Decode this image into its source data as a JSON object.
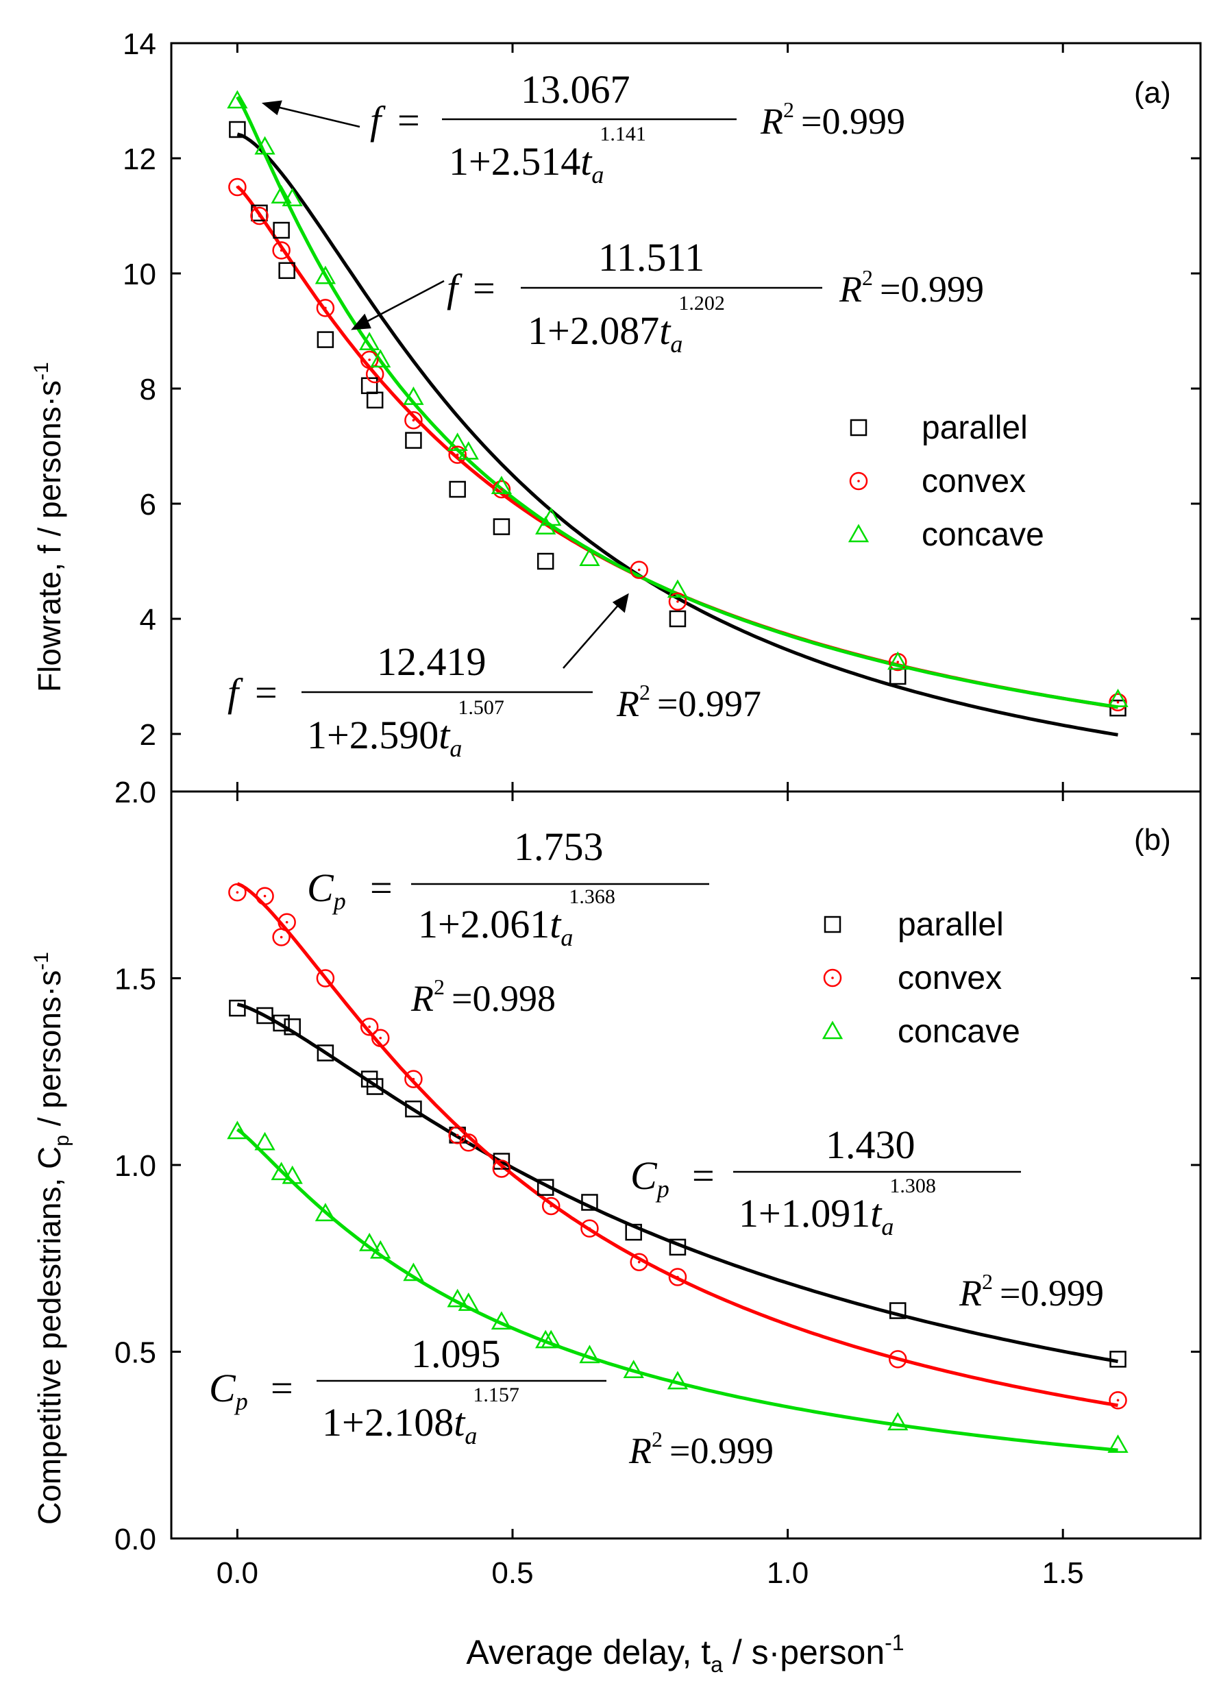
{
  "colors": {
    "parallel": "#000000",
    "convex": "#ff0000",
    "concave": "#00dd00",
    "axis": "#000000"
  },
  "shared_x_axis": {
    "label_prefix": "Average delay, t",
    "label_sub": "a",
    "label_mid": " / s·person",
    "label_sup": "-1",
    "ticks": [
      "0.0",
      "0.5",
      "1.0",
      "1.5"
    ],
    "tick_values": [
      0,
      0.5,
      1.0,
      1.5
    ],
    "range": [
      -0.12,
      1.75
    ]
  },
  "chart_data": [
    {
      "type": "scatter",
      "panel_label": "(a)",
      "ylabel": "Flowrate, f / persons·s",
      "ylabel_sup": "-1",
      "ylim": [
        1,
        14
      ],
      "y_ticks": [
        "2",
        "4",
        "6",
        "8",
        "10",
        "12",
        "14"
      ],
      "y_tick_values": [
        2,
        4,
        6,
        8,
        10,
        12,
        14
      ],
      "legend": [
        "parallel",
        "convex",
        "concave"
      ],
      "series": [
        {
          "name": "parallel",
          "x": [
            0,
            0.04,
            0.08,
            0.09,
            0.16,
            0.24,
            0.25,
            0.32,
            0.4,
            0.48,
            0.56,
            0.8,
            1.2,
            1.6
          ],
          "y": [
            12.5,
            11.05,
            10.75,
            10.05,
            8.85,
            8.05,
            7.8,
            7.1,
            6.25,
            5.6,
            5.0,
            4.0,
            3.0,
            2.45
          ],
          "fit": {
            "a": 12.419,
            "b": 2.59,
            "c": 1.507,
            "r2": "0.997"
          }
        },
        {
          "name": "convex",
          "x": [
            0,
            0.04,
            0.08,
            0.16,
            0.24,
            0.25,
            0.32,
            0.4,
            0.48,
            0.73,
            0.8,
            1.2,
            1.6
          ],
          "y": [
            11.5,
            11.0,
            10.4,
            9.4,
            8.5,
            8.25,
            7.45,
            6.85,
            6.25,
            4.85,
            4.3,
            3.25,
            2.55
          ],
          "fit": {
            "a": 11.511,
            "b": 2.087,
            "c": 1.202,
            "r2": "0.999"
          }
        },
        {
          "name": "concave",
          "x": [
            0,
            0.05,
            0.08,
            0.1,
            0.16,
            0.24,
            0.26,
            0.32,
            0.4,
            0.42,
            0.48,
            0.56,
            0.57,
            0.64,
            0.8,
            1.2,
            1.6
          ],
          "y": [
            13.0,
            12.2,
            11.35,
            11.3,
            9.95,
            8.8,
            8.5,
            7.85,
            7.05,
            6.9,
            6.3,
            5.6,
            5.75,
            5.05,
            4.5,
            3.25,
            2.6
          ],
          "fit": {
            "a": 13.067,
            "b": 2.514,
            "c": 1.141,
            "r2": "0.999"
          }
        }
      ],
      "equations": [
        {
          "series": "concave",
          "lhs": "f",
          "num": "13.067",
          "den_pre": "1+2.514",
          "t": "t",
          "sub": "a",
          "exp": "1.141",
          "r2_label": "R",
          "r2_sup": "2",
          "r2_val": "=0.999"
        },
        {
          "series": "convex",
          "lhs": "f",
          "num": "11.511",
          "den_pre": "1+2.087",
          "t": "t",
          "sub": "a",
          "exp": "1.202",
          "r2_label": "R",
          "r2_sup": "2",
          "r2_val": "=0.999"
        },
        {
          "series": "parallel",
          "lhs": "f",
          "num": "12.419",
          "den_pre": "1+2.590",
          "t": "t",
          "sub": "a",
          "exp": "1.507",
          "r2_label": "R",
          "r2_sup": "2",
          "r2_val": "=0.997"
        }
      ]
    },
    {
      "type": "scatter",
      "panel_label": "(b)",
      "ylabel": "Competitive pedestrians, C",
      "ylabel_sub": "p",
      "ylabel_rest": " / persons·s",
      "ylabel_sup": "-1",
      "ylim": [
        0,
        2.0
      ],
      "y_ticks": [
        "0.0",
        "0.5",
        "1.0",
        "1.5",
        "2.0"
      ],
      "y_tick_values": [
        0,
        0.5,
        1.0,
        1.5,
        2.0
      ],
      "legend": [
        "parallel",
        "convex",
        "concave"
      ],
      "series": [
        {
          "name": "parallel",
          "x": [
            0,
            0.05,
            0.08,
            0.1,
            0.16,
            0.24,
            0.25,
            0.32,
            0.4,
            0.48,
            0.56,
            0.64,
            0.72,
            0.8,
            1.2,
            1.6
          ],
          "y": [
            1.42,
            1.4,
            1.38,
            1.37,
            1.3,
            1.23,
            1.21,
            1.15,
            1.08,
            1.01,
            0.94,
            0.9,
            0.82,
            0.78,
            0.61,
            0.48
          ],
          "fit": {
            "a": 1.43,
            "b": 1.091,
            "c": 1.308,
            "r2": "0.999"
          }
        },
        {
          "name": "convex",
          "x": [
            0,
            0.05,
            0.08,
            0.09,
            0.16,
            0.24,
            0.26,
            0.32,
            0.4,
            0.42,
            0.48,
            0.57,
            0.64,
            0.73,
            0.8,
            1.2,
            1.6
          ],
          "y": [
            1.73,
            1.72,
            1.61,
            1.65,
            1.5,
            1.37,
            1.34,
            1.23,
            1.08,
            1.06,
            0.99,
            0.89,
            0.83,
            0.74,
            0.7,
            0.48,
            0.37
          ],
          "fit": {
            "a": 1.753,
            "b": 2.061,
            "c": 1.368,
            "r2": "0.998"
          }
        },
        {
          "name": "concave",
          "x": [
            0,
            0.05,
            0.08,
            0.1,
            0.16,
            0.24,
            0.26,
            0.32,
            0.4,
            0.42,
            0.48,
            0.56,
            0.57,
            0.64,
            0.72,
            0.8,
            1.2,
            1.6
          ],
          "y": [
            1.09,
            1.06,
            0.98,
            0.97,
            0.87,
            0.79,
            0.77,
            0.71,
            0.64,
            0.63,
            0.58,
            0.53,
            0.53,
            0.49,
            0.45,
            0.42,
            0.31,
            0.25
          ],
          "fit": {
            "a": 1.095,
            "b": 2.108,
            "c": 1.157,
            "r2": "0.999"
          }
        }
      ],
      "equations": [
        {
          "series": "convex",
          "lhs": "C",
          "lhs_sub": "p",
          "num": "1.753",
          "den_pre": "1+2.061",
          "t": "t",
          "sub": "a",
          "exp": "1.368",
          "r2_label": "R",
          "r2_sup": "2",
          "r2_val": "=0.998"
        },
        {
          "series": "parallel",
          "lhs": "C",
          "lhs_sub": "p",
          "num": "1.430",
          "den_pre": "1+1.091",
          "t": "t",
          "sub": "a",
          "exp": "1.308",
          "r2_label": "R",
          "r2_sup": "2",
          "r2_val": "=0.999"
        },
        {
          "series": "concave",
          "lhs": "C",
          "lhs_sub": "p",
          "num": "1.095",
          "den_pre": "1+2.108",
          "t": "t",
          "sub": "a",
          "exp": "1.157",
          "r2_label": "R",
          "r2_sup": "2",
          "r2_val": "=0.999"
        }
      ]
    }
  ]
}
